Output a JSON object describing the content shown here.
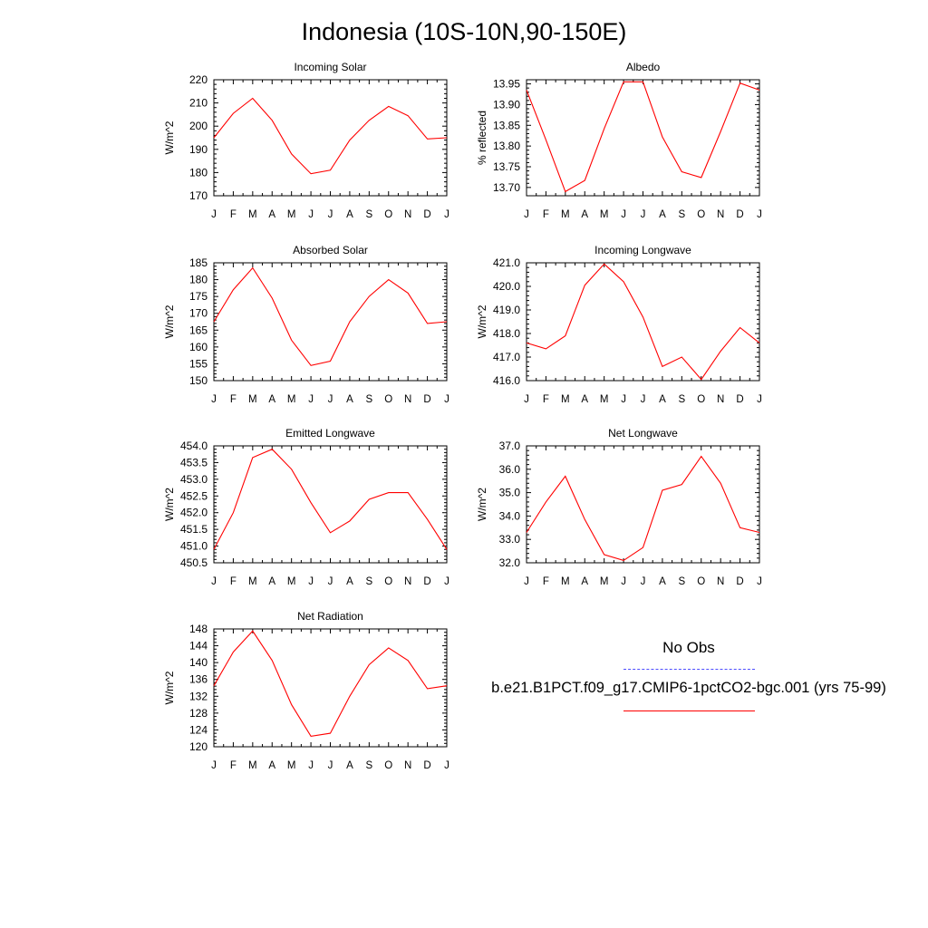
{
  "figure": {
    "title": "Indonesia (10S-10N,90-150E)"
  },
  "legend": {
    "obs_label": "No Obs",
    "model_label": "b.e21.B1PCT.f09_g17.CMIP6-1pctCO2-bgc.001 (yrs 75-99)",
    "obs_color": "#4d4dff",
    "model_color": "#ff0000"
  },
  "chart_data": [
    {
      "type": "line",
      "title": "Incoming Solar",
      "ylabel": "W/m^2",
      "xlabel": "",
      "categories": [
        "J",
        "F",
        "M",
        "A",
        "M",
        "J",
        "J",
        "A",
        "S",
        "O",
        "N",
        "D",
        "J"
      ],
      "ylim": [
        170,
        220
      ],
      "yticks": [
        170,
        180,
        190,
        200,
        210,
        220
      ],
      "ytick_labels": [
        "170",
        "180",
        "190",
        "200",
        "210",
        "220"
      ],
      "series": [
        {
          "color": "#ff0000",
          "values": [
            195.0,
            205.5,
            212.0,
            202.5,
            188.0,
            179.5,
            181.0,
            194.0,
            202.5,
            208.5,
            204.5,
            194.5,
            195.0
          ]
        }
      ]
    },
    {
      "type": "line",
      "title": "Albedo",
      "ylabel": "% reflected",
      "xlabel": "",
      "categories": [
        "J",
        "F",
        "M",
        "A",
        "M",
        "J",
        "J",
        "A",
        "S",
        "O",
        "N",
        "D",
        "J"
      ],
      "ylim": [
        13.68,
        13.96
      ],
      "yticks": [
        13.7,
        13.75,
        13.8,
        13.85,
        13.9,
        13.95
      ],
      "ytick_labels": [
        "13.70",
        "13.75",
        "13.80",
        "13.85",
        "13.90",
        "13.95"
      ],
      "series": [
        {
          "color": "#ff0000",
          "values": [
            13.935,
            13.815,
            13.69,
            13.717,
            13.842,
            13.955,
            13.955,
            13.822,
            13.738,
            13.724,
            13.835,
            13.952,
            13.935
          ]
        }
      ]
    },
    {
      "type": "line",
      "title": "Absorbed Solar",
      "ylabel": "W/m^2",
      "xlabel": "",
      "categories": [
        "J",
        "F",
        "M",
        "A",
        "M",
        "J",
        "J",
        "A",
        "S",
        "O",
        "N",
        "D",
        "J"
      ],
      "ylim": [
        150,
        185
      ],
      "yticks": [
        150,
        155,
        160,
        165,
        170,
        175,
        180,
        185
      ],
      "ytick_labels": [
        "150",
        "155",
        "160",
        "165",
        "170",
        "175",
        "180",
        "185"
      ],
      "series": [
        {
          "color": "#ff0000",
          "values": [
            167.5,
            177.0,
            183.5,
            174.5,
            162.0,
            154.5,
            155.8,
            167.5,
            175.0,
            180.0,
            176.0,
            167.0,
            167.5
          ]
        }
      ]
    },
    {
      "type": "line",
      "title": "Incoming Longwave",
      "ylabel": "W/m^2",
      "xlabel": "",
      "categories": [
        "J",
        "F",
        "M",
        "A",
        "M",
        "J",
        "J",
        "A",
        "S",
        "O",
        "N",
        "D",
        "J"
      ],
      "ylim": [
        416.0,
        421.0
      ],
      "yticks": [
        416.0,
        417.0,
        418.0,
        419.0,
        420.0,
        421.0
      ],
      "ytick_labels": [
        "416.0",
        "417.0",
        "418.0",
        "419.0",
        "420.0",
        "421.0"
      ],
      "series": [
        {
          "color": "#ff0000",
          "values": [
            417.6,
            417.35,
            417.9,
            420.05,
            420.95,
            420.2,
            418.7,
            416.6,
            417.0,
            416.05,
            417.25,
            418.25,
            417.6
          ]
        }
      ]
    },
    {
      "type": "line",
      "title": "Emitted Longwave",
      "ylabel": "W/m^2",
      "xlabel": "",
      "categories": [
        "J",
        "F",
        "M",
        "A",
        "M",
        "J",
        "J",
        "A",
        "S",
        "O",
        "N",
        "D",
        "J"
      ],
      "ylim": [
        450.5,
        454.0
      ],
      "yticks": [
        450.5,
        451.0,
        451.5,
        452.0,
        452.5,
        453.0,
        453.5,
        454.0
      ],
      "ytick_labels": [
        "450.5",
        "451.0",
        "451.5",
        "452.0",
        "452.5",
        "453.0",
        "453.5",
        "454.0"
      ],
      "series": [
        {
          "color": "#ff0000",
          "values": [
            450.9,
            452.0,
            453.65,
            453.9,
            453.3,
            452.3,
            451.4,
            451.75,
            452.4,
            452.6,
            452.6,
            451.8,
            450.9
          ]
        }
      ]
    },
    {
      "type": "line",
      "title": "Net Longwave",
      "ylabel": "W/m^2",
      "xlabel": "",
      "categories": [
        "J",
        "F",
        "M",
        "A",
        "M",
        "J",
        "J",
        "A",
        "S",
        "O",
        "N",
        "D",
        "J"
      ],
      "ylim": [
        32.0,
        37.0
      ],
      "yticks": [
        32.0,
        33.0,
        34.0,
        35.0,
        36.0,
        37.0
      ],
      "ytick_labels": [
        "32.0",
        "33.0",
        "34.0",
        "35.0",
        "36.0",
        "37.0"
      ],
      "series": [
        {
          "color": "#ff0000",
          "values": [
            33.3,
            34.6,
            35.7,
            33.85,
            32.35,
            32.1,
            32.65,
            35.1,
            35.35,
            36.55,
            35.4,
            33.5,
            33.3
          ]
        }
      ]
    },
    {
      "type": "line",
      "title": "Net Radiation",
      "ylabel": "W/m^2",
      "xlabel": "",
      "categories": [
        "J",
        "F",
        "M",
        "A",
        "M",
        "J",
        "J",
        "A",
        "S",
        "O",
        "N",
        "D",
        "J"
      ],
      "ylim": [
        120,
        148
      ],
      "yticks": [
        120,
        124,
        128,
        132,
        136,
        140,
        144,
        148
      ],
      "ytick_labels": [
        "120",
        "124",
        "128",
        "132",
        "136",
        "140",
        "144",
        "148"
      ],
      "series": [
        {
          "color": "#ff0000",
          "values": [
            134.5,
            142.5,
            147.5,
            140.5,
            130.0,
            122.5,
            123.2,
            132.0,
            139.5,
            143.5,
            140.5,
            133.8,
            134.5
          ]
        }
      ]
    }
  ]
}
